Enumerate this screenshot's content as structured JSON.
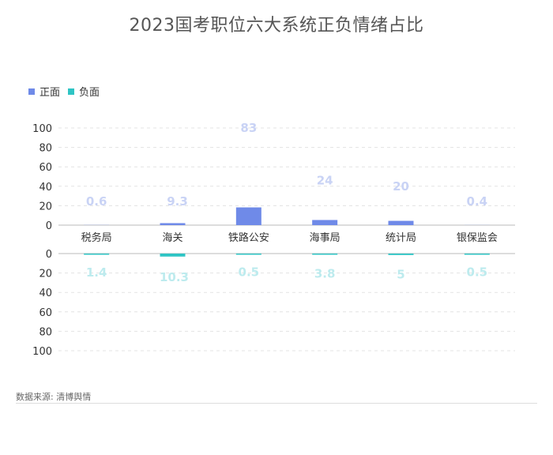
{
  "title": "2023国考职位六大系统正负情绪占比",
  "legend": [
    {
      "label": "正面",
      "color": "#6f8ae8"
    },
    {
      "label": "负面",
      "color": "#2ec4c4"
    }
  ],
  "source": "数据来源: 清博舆情",
  "chart_data": {
    "type": "bar",
    "title": "2023国考职位六大系统正负情绪占比",
    "categories": [
      "税务局",
      "海关",
      "铁路公安",
      "海事局",
      "统计局",
      "银保监会"
    ],
    "y_ticks": [
      "100",
      "80",
      "60",
      "40",
      "20",
      "0"
    ],
    "ylim": [
      0,
      100
    ],
    "grid": true,
    "legend_position": "top-left",
    "series": [
      {
        "name": "正面",
        "color": "#6f8ae8",
        "values": [
          0.6,
          9.3,
          83,
          24,
          20,
          0.4
        ],
        "labels": [
          "0.6",
          "9.3",
          "83",
          "24",
          "20",
          "0.4"
        ]
      },
      {
        "name": "负面",
        "color": "#2ec4c4",
        "values": [
          1.4,
          10.3,
          0.5,
          3.8,
          5,
          0.5
        ],
        "labels": [
          "1.4",
          "10.3",
          "0.5",
          "3.8",
          "5",
          "0.5"
        ]
      }
    ]
  }
}
